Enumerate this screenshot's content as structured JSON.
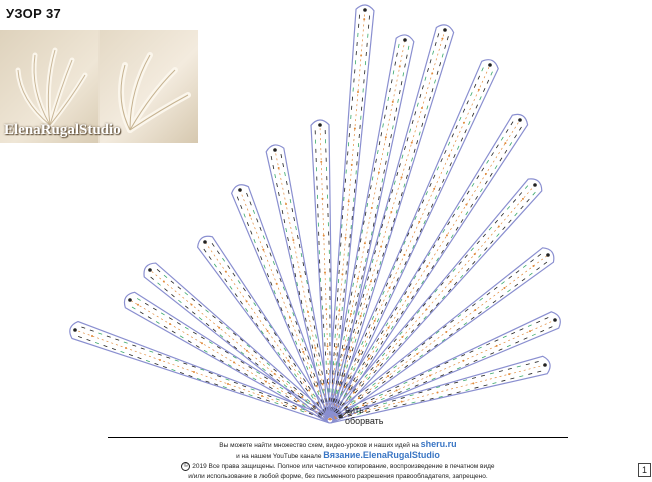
{
  "title": "УЗОР 37",
  "photo": {
    "watermark": "ElenaRugalStudio"
  },
  "note": {
    "line1": "нить",
    "line2": "оборвать"
  },
  "footer": {
    "line1_text": "Вы можете найти множество схем, видео-уроков и наших идей на",
    "line1_link": "sheru.ru",
    "line2_text": "и на нашем YouTube канале",
    "line2_link": "Вязание.ElenaRugalStudio",
    "copyright_symbol": "©",
    "copyright": "2019 Все права защищены. Полное или частичное копирование, воспроизведение в печатном виде",
    "copyright2": "и/или использование в любой форме, без письменного разрешения правообладателя, запрещено."
  },
  "page_number": "1",
  "colors": {
    "outline": "#8a8fd0",
    "stitch_dark": "#222222",
    "stitch_orange": "#e08a3a",
    "stitch_green": "#3aa86a",
    "link": "#3a76c4"
  }
}
